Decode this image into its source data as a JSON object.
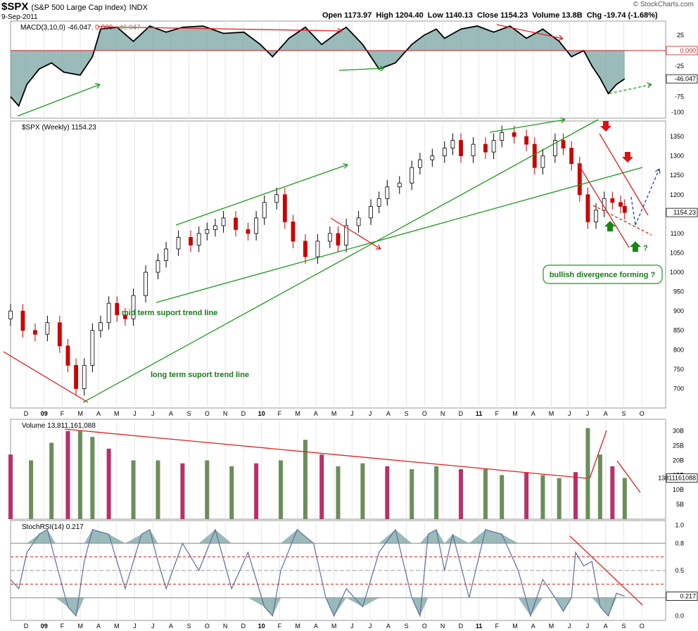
{
  "header": {
    "symbol": "$SPX",
    "name": "(S&P 500 Large Cap Index)",
    "exchange": "INDX",
    "date": "9-Sep-2011",
    "quote": "Open 1173.97  High 1204.40  Low 1140.13  Close 1154.23  Volume 13.8B  Chg -19.74 (-1.68%)",
    "brand": "© StockCharts.com"
  },
  "chart_data": [
    {
      "type": "area",
      "panel": "macd",
      "label": "MACD(3,10,0)",
      "label_values": [
        "-46.047",
        "0.000",
        "-46.047"
      ],
      "ylim": [
        -110,
        48
      ],
      "yticks": [
        25,
        -25,
        -50,
        -75,
        -100
      ],
      "zero_label": "0.000",
      "last_label": "-46.047",
      "x": [
        0,
        2,
        4,
        7,
        10,
        13,
        17,
        20,
        22,
        26,
        30,
        34,
        38,
        42,
        47,
        52,
        57,
        61,
        64,
        68,
        72,
        76,
        80,
        82,
        86,
        90,
        94,
        98,
        101,
        104,
        106,
        110,
        114,
        118,
        122,
        126,
        130,
        134,
        137,
        140,
        142,
        144,
        146,
        148,
        150
      ],
      "values": [
        -75,
        -90,
        -55,
        -30,
        -20,
        -35,
        -40,
        -10,
        35,
        38,
        15,
        40,
        30,
        38,
        40,
        28,
        30,
        10,
        -10,
        20,
        38,
        10,
        30,
        38,
        10,
        -30,
        -20,
        10,
        25,
        35,
        20,
        35,
        40,
        30,
        40,
        20,
        35,
        15,
        -10,
        0,
        -25,
        -45,
        -70,
        -55,
        -46
      ]
    },
    {
      "type": "candlestick",
      "panel": "price",
      "label": "$SPX (Weekly) 1154.23",
      "ylim": [
        650,
        1390
      ],
      "yticks": [
        1350,
        1300,
        1250,
        1200,
        1150,
        1100,
        1050,
        1000,
        950,
        900,
        850,
        800,
        750,
        700
      ],
      "last_label": "1154.23",
      "x": [
        0,
        3,
        6,
        9,
        12,
        14,
        16,
        18,
        20,
        22,
        24,
        26,
        28,
        30,
        33,
        36,
        38,
        41,
        44,
        46,
        48,
        50,
        52,
        55,
        58,
        60,
        62,
        65,
        67,
        69,
        72,
        75,
        78,
        80,
        82,
        85,
        88,
        90,
        92,
        95,
        98,
        100,
        103,
        106,
        108,
        110,
        113,
        116,
        118,
        120,
        123,
        126,
        128,
        130,
        133,
        135,
        137,
        139,
        141,
        143,
        145,
        147,
        149,
        150
      ],
      "values": [
        900,
        850,
        840,
        870,
        810,
        760,
        700,
        760,
        850,
        870,
        920,
        890,
        880,
        940,
        1000,
        1030,
        1060,
        1090,
        1070,
        1100,
        1110,
        1120,
        1140,
        1110,
        1100,
        1140,
        1180,
        1200,
        1130,
        1080,
        1040,
        1080,
        1100,
        1070,
        1120,
        1140,
        1170,
        1190,
        1220,
        1230,
        1270,
        1290,
        1300,
        1320,
        1340,
        1300,
        1330,
        1310,
        1340,
        1360,
        1350,
        1330,
        1270,
        1300,
        1340,
        1320,
        1280,
        1200,
        1130,
        1160,
        1190,
        1180,
        1170,
        1154
      ]
    },
    {
      "type": "bar",
      "panel": "volume",
      "label": "Volume 13,811,161,088",
      "ylim": [
        0,
        34
      ],
      "yticks": [
        "30B",
        "25B",
        "20B",
        "15B",
        "10B",
        "5B"
      ],
      "last_label": "13811161088",
      "x": [
        0,
        5,
        10,
        14,
        17,
        20,
        24,
        30,
        36,
        42,
        48,
        54,
        60,
        66,
        72,
        76,
        80,
        86,
        92,
        98,
        104,
        110,
        116,
        120,
        126,
        130,
        134,
        138,
        141,
        144,
        147,
        150
      ],
      "values": [
        22,
        20,
        26,
        30,
        30,
        28,
        24,
        20,
        20,
        19,
        20,
        18,
        19,
        20,
        27,
        22,
        18,
        19,
        18,
        17,
        18,
        17,
        17,
        15,
        16,
        15,
        14,
        16,
        31,
        22,
        18,
        14
      ]
    },
    {
      "type": "area",
      "panel": "stochrsi",
      "label": "StochRSI(14) 0.217",
      "ylim": [
        -0.05,
        1.05
      ],
      "yticks": [
        "1.0",
        "0.8",
        "0.5",
        "0.2",
        "0.0"
      ],
      "last_label": "0.217",
      "x": [
        0,
        2,
        4,
        7,
        9,
        11,
        14,
        16,
        18,
        20,
        24,
        28,
        32,
        34,
        36,
        38,
        42,
        46,
        50,
        54,
        58,
        62,
        64,
        66,
        70,
        74,
        77,
        79,
        82,
        86,
        90,
        94,
        98,
        100,
        102,
        104,
        106,
        108,
        112,
        116,
        120,
        124,
        127,
        130,
        133,
        135,
        137,
        138,
        140,
        142,
        144,
        146,
        148,
        150
      ],
      "values": [
        0.4,
        0.3,
        0.7,
        0.9,
        0.95,
        0.6,
        0.1,
        0.0,
        0.6,
        0.95,
        0.9,
        0.3,
        0.9,
        0.95,
        0.6,
        0.3,
        0.8,
        0.5,
        0.95,
        0.3,
        0.7,
        0.1,
        0.0,
        0.5,
        0.95,
        0.8,
        0.2,
        0.0,
        0.3,
        0.1,
        0.7,
        0.95,
        0.2,
        0.0,
        0.9,
        0.95,
        0.5,
        0.9,
        0.2,
        0.95,
        0.9,
        0.5,
        0.0,
        0.4,
        0.2,
        0.05,
        0.2,
        0.7,
        0.55,
        0.6,
        0.1,
        0.0,
        0.25,
        0.217
      ]
    }
  ],
  "x_axis": {
    "labels": [
      "D",
      "09",
      "F",
      "M",
      "A",
      "M",
      "J",
      "J",
      "A",
      "S",
      "O",
      "N",
      "D",
      "10",
      "F",
      "M",
      "A",
      "M",
      "J",
      "J",
      "A",
      "S",
      "O",
      "N",
      "D",
      "11",
      "F",
      "M",
      "A",
      "M",
      "J",
      "J",
      "A",
      "S",
      "O"
    ],
    "bold": [
      "09",
      "10",
      "11"
    ]
  },
  "annotations": {
    "mid_trend": "mid term suport trend line",
    "long_trend": "long term suport trend line",
    "divergence": "bullish divergence forming ?",
    "question": "?"
  },
  "colors": {
    "up_volume": "#6b8e5a",
    "down_volume": "#b8306a",
    "macd_fill": "#7aa3a3",
    "trend_green": "#1a9a1a",
    "trend_red": "#e02020",
    "projection": "#2040c0",
    "panel_border": "#999999"
  }
}
